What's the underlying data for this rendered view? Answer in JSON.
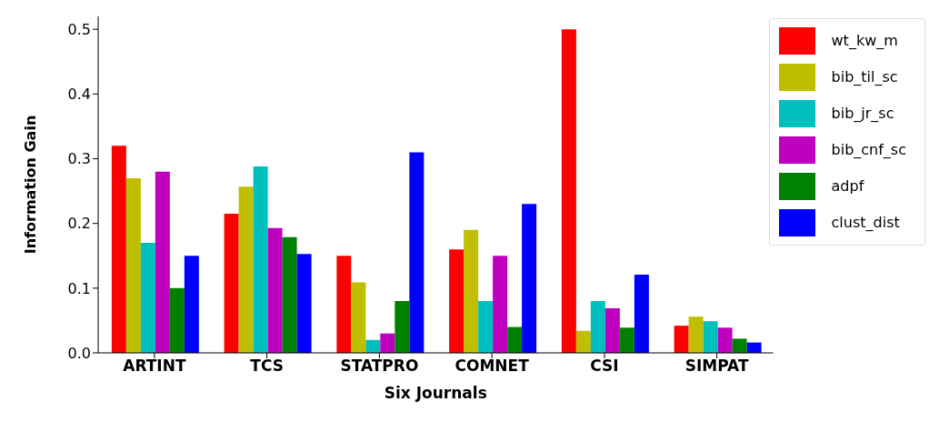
{
  "chart_data": {
    "type": "bar",
    "xlabel": "Six Journals",
    "ylabel": "Information Gain",
    "categories": [
      "ARTINT",
      "TCS",
      "STATPRO",
      "COMNET",
      "CSI",
      "SIMPAT"
    ],
    "series": [
      {
        "name": "wt_kw_m",
        "color": "#ff0000",
        "values": [
          0.32,
          0.215,
          0.15,
          0.16,
          0.5,
          0.042
        ]
      },
      {
        "name": "bib_til_sc",
        "color": "#bfbf00",
        "values": [
          0.27,
          0.257,
          0.109,
          0.19,
          0.034,
          0.056
        ]
      },
      {
        "name": "bib_jr_sc",
        "color": "#00bfbf",
        "values": [
          0.17,
          0.288,
          0.02,
          0.08,
          0.08,
          0.049
        ]
      },
      {
        "name": "bib_cnf_sc",
        "color": "#bf00bf",
        "values": [
          0.28,
          0.193,
          0.03,
          0.15,
          0.069,
          0.039
        ]
      },
      {
        "name": "adpf",
        "color": "#008000",
        "values": [
          0.1,
          0.179,
          0.08,
          0.04,
          0.039,
          0.022
        ]
      },
      {
        "name": "clust_dist",
        "color": "#0000ff",
        "values": [
          0.15,
          0.153,
          0.31,
          0.23,
          0.121,
          0.016
        ]
      }
    ],
    "ylim": [
      0,
      0.52
    ],
    "yticks": [
      {
        "value": 0,
        "label": "0.0"
      },
      {
        "value": 0.1,
        "label": "0.1"
      },
      {
        "value": 0.2,
        "label": "0.2"
      },
      {
        "value": 0.3,
        "label": "0.3"
      },
      {
        "value": 0.4,
        "label": "0.4"
      },
      {
        "value": 0.5,
        "label": "0.5"
      }
    ],
    "grid": false,
    "legend": "top right"
  }
}
